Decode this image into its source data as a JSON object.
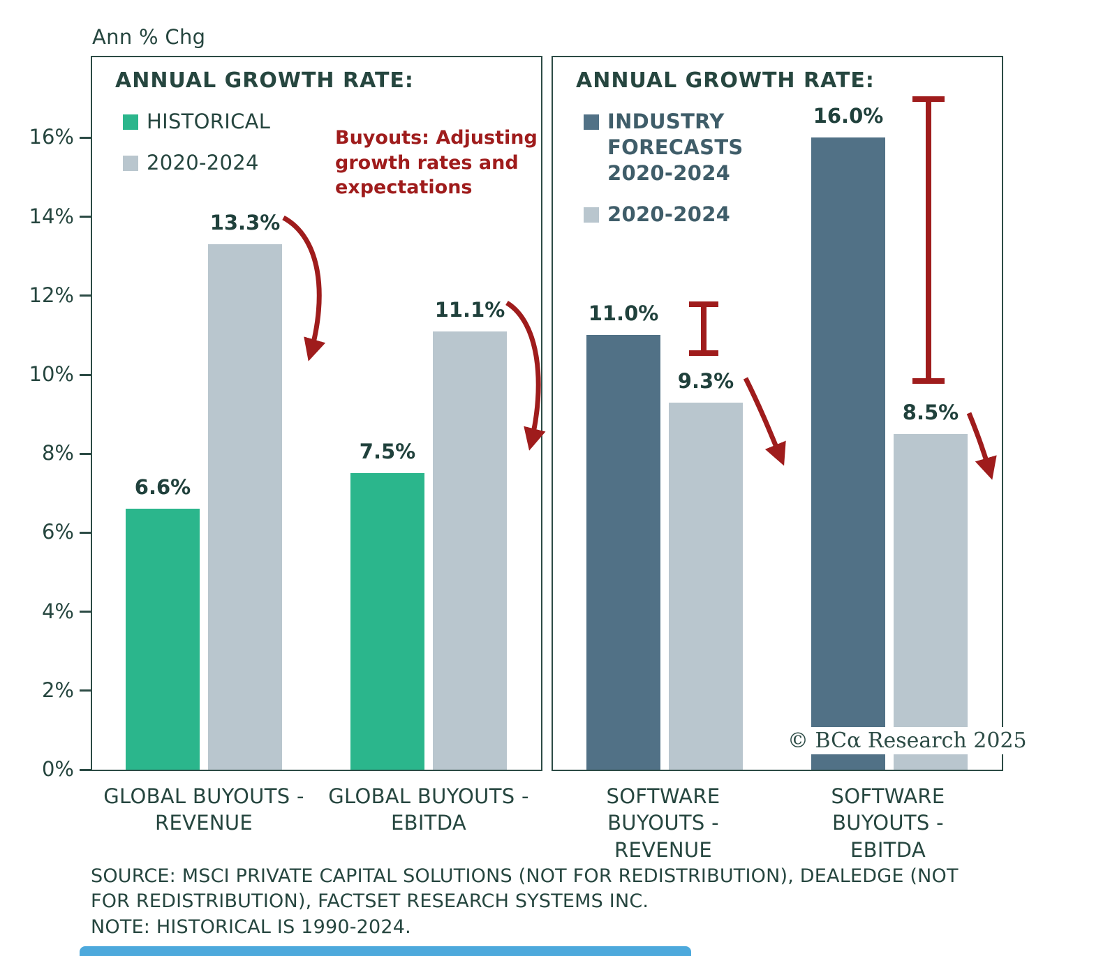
{
  "page": {
    "y_axis_title": "Ann % Chg",
    "copyright": "© BCα Research 2025",
    "footnotes": [
      "SOURCE: MSCI PRIVATE CAPITAL SOLUTIONS (NOT FOR REDISTRIBUTION), DEALEDGE (NOT FOR REDISTRIBUTION), FACTSET RESEARCH SYSTEMS INC.",
      "NOTE: HISTORICAL IS 1990-2024."
    ]
  },
  "colors": {
    "green": "#2bb68c",
    "light_blue_gray": "#b9c6ce",
    "steel_blue": "#517186",
    "accent_red": "#9f1c1c",
    "text_dark": "#26463f",
    "border_dark": "#2c4b45",
    "bottom_bar_blue": "#4da9dc"
  },
  "y_axis": {
    "tick_labels": [
      "0%",
      "2%",
      "4%",
      "6%",
      "8%",
      "10%",
      "12%",
      "14%",
      "16%"
    ],
    "tick_values": [
      0,
      2,
      4,
      6,
      8,
      10,
      12,
      14,
      16
    ]
  },
  "chart_data": [
    {
      "type": "bar",
      "title": "ANNUAL GROWTH RATE:",
      "annotation": "Buyouts: Adjusting growth rates and expectations",
      "legend": [
        {
          "label": "HISTORICAL",
          "color": "#2bb68c"
        },
        {
          "label": "2020-2024",
          "color": "#b9c6ce"
        }
      ],
      "categories": [
        "GLOBAL BUYOUTS - REVENUE",
        "GLOBAL BUYOUTS - EBITDA"
      ],
      "series": [
        {
          "name": "HISTORICAL",
          "color": "#2bb68c",
          "values": [
            6.6,
            7.5
          ],
          "labels": [
            "6.6%",
            "7.5%"
          ]
        },
        {
          "name": "2020-2024",
          "color": "#b9c6ce",
          "values": [
            13.3,
            11.1
          ],
          "labels": [
            "13.3%",
            "11.1%"
          ]
        }
      ],
      "ylabel": "Ann % Chg",
      "ylim": [
        0,
        18
      ],
      "grid": false,
      "legend_position": "upper-left"
    },
    {
      "type": "bar",
      "title": "ANNUAL GROWTH RATE:",
      "annotation": "",
      "legend": [
        {
          "label": "INDUSTRY FORECASTS 2020-2024",
          "color": "#517186"
        },
        {
          "label": "2020-2024",
          "color": "#b9c6ce"
        }
      ],
      "categories": [
        "SOFTWARE BUYOUTS - REVENUE",
        "SOFTWARE BUYOUTS - EBITDA"
      ],
      "series": [
        {
          "name": "INDUSTRY FORECASTS 2020-2024",
          "color": "#517186",
          "values": [
            11.0,
            16.0
          ],
          "labels": [
            "11.0%",
            "16.0%"
          ]
        },
        {
          "name": "2020-2024",
          "color": "#b9c6ce",
          "values": [
            9.3,
            8.5
          ],
          "labels": [
            "9.3%",
            "8.5%"
          ]
        }
      ],
      "ylabel": "Ann % Chg",
      "ylim": [
        0,
        18
      ],
      "grid": false,
      "legend_position": "upper-left"
    }
  ]
}
